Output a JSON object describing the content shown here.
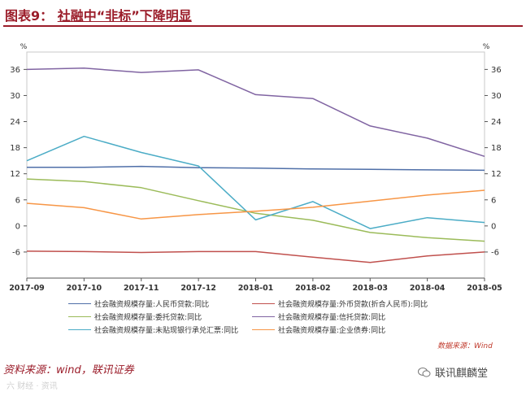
{
  "header": {
    "title_prefix": "图表9：",
    "title_main": "社融中“非标”下降明显"
  },
  "chart_data": {
    "type": "line",
    "categories": [
      "2017-09",
      "2017-10",
      "2017-11",
      "2017-12",
      "2018-01",
      "2018-02",
      "2018-03",
      "2018-04",
      "2018-05"
    ],
    "ylim": [
      -12,
      40
    ],
    "yticks": [
      -6,
      0,
      6,
      12,
      18,
      24,
      30,
      36
    ],
    "yunit_left": "%",
    "yunit_right": "%",
    "series": [
      {
        "name": "社会融资规模存量:人民币贷款:同比",
        "color": "#4f6fa8",
        "values": [
          13.5,
          13.5,
          13.7,
          13.4,
          13.3,
          13.1,
          13.0,
          12.9,
          12.8
        ]
      },
      {
        "name": "社会融资规模存量:外币贷款(折合人民币):同比",
        "color": "#c0504d",
        "values": [
          -5.8,
          -5.9,
          -6.1,
          -5.9,
          -5.9,
          -7.2,
          -8.4,
          -6.9,
          -6.0
        ]
      },
      {
        "name": "社会融资规模存量:委托贷款:同比",
        "color": "#9bbb59",
        "values": [
          10.8,
          10.2,
          8.8,
          5.8,
          2.9,
          1.3,
          -1.5,
          -2.7,
          -3.5
        ]
      },
      {
        "name": "社会融资规模存量:信托贷款:同比",
        "color": "#8064a2",
        "values": [
          36.0,
          36.3,
          35.3,
          35.9,
          30.2,
          29.3,
          23.0,
          20.2,
          16.0
        ]
      },
      {
        "name": "社会融资规模存量:未贴现银行承兑汇票:同比",
        "color": "#4bacc6",
        "values": [
          15.0,
          20.6,
          16.9,
          13.8,
          1.4,
          5.6,
          -0.6,
          1.9,
          0.8
        ]
      },
      {
        "name": "社会融资规模存量:企业债券:同比",
        "color": "#f79646",
        "values": [
          5.2,
          4.2,
          1.6,
          2.6,
          3.4,
          4.3,
          5.7,
          7.1,
          8.2
        ]
      }
    ]
  },
  "legend": [
    {
      "label": "社会融资规模存量:人民币贷款:同比",
      "color": "#4f6fa8"
    },
    {
      "label": "社会融资规模存量:外币贷款(折合人民币):同比",
      "color": "#c0504d"
    },
    {
      "label": "社会融资规模存量:委托贷款:同比",
      "color": "#9bbb59"
    },
    {
      "label": "社会融资规模存量:信托贷款:同比",
      "color": "#8064a2"
    },
    {
      "label": "社会融资规模存量:未贴现银行承兑汇票:同比",
      "color": "#4bacc6"
    },
    {
      "label": "社会融资规模存量:企业债券:同比",
      "color": "#f79646"
    }
  ],
  "source_note": "数据来源：Wind",
  "footer": {
    "source": "资料来源：wind，联讯证券"
  },
  "watermarks": {
    "left": "六 财经 · 资讯",
    "right": "联讯麒麟堂"
  }
}
